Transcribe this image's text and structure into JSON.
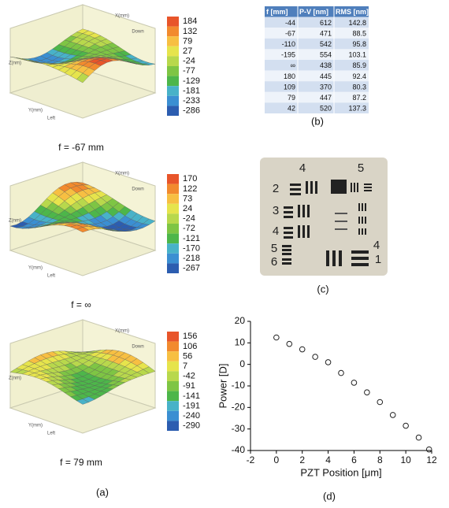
{
  "surface_axis_labels": [
    "X(mm)",
    "Y(mm)",
    "Z(nm)",
    "Left",
    "Down"
  ],
  "colorbar_colors": [
    "#e8552a",
    "#f28a2e",
    "#f7bf42",
    "#e6e44c",
    "#b8d84c",
    "#7ec544",
    "#4db64a",
    "#48b2c8",
    "#3b8fd2",
    "#2c5db0"
  ],
  "surfaces": [
    {
      "caption": "f = -67 mm",
      "colorbar": [
        184,
        132,
        79,
        27,
        -24,
        -77,
        -129,
        -181,
        -233,
        -286
      ]
    },
    {
      "caption": "f = ∞",
      "colorbar": [
        170,
        122,
        73,
        24,
        -24,
        -72,
        -121,
        -170,
        -218,
        -267
      ]
    },
    {
      "caption": "f = 79 mm",
      "colorbar": [
        156,
        106,
        56,
        7,
        -42,
        -91,
        -141,
        -191,
        -240,
        -290
      ]
    }
  ],
  "panel_labels": [
    "(a)",
    "(b)",
    "(c)",
    "(d)"
  ],
  "table": {
    "header": [
      "f [mm]",
      "P-V [nm]",
      "RMS [nm]"
    ],
    "rows": [
      [
        -44,
        612,
        142.8
      ],
      [
        -67,
        471,
        88.5
      ],
      [
        -110,
        542,
        95.8
      ],
      [
        -195,
        554,
        103.1
      ],
      [
        "∞",
        438,
        85.9
      ],
      [
        180,
        445,
        92.4
      ],
      [
        109,
        370,
        80.3
      ],
      [
        79,
        447,
        87.2
      ],
      [
        42,
        520,
        137.3
      ]
    ]
  },
  "target": {
    "labels": [
      "4",
      "5",
      "2",
      "3",
      "4",
      "5",
      "6",
      "4",
      "1"
    ]
  },
  "chart_data": {
    "type": "scatter",
    "xlabel": "PZT Position [μm]",
    "ylabel": "Power [D]",
    "x": [
      0,
      1,
      2,
      3,
      4,
      5,
      6,
      7,
      8,
      9,
      10,
      11,
      11.8
    ],
    "series": [
      {
        "color": "#222222",
        "values": [
          12.5,
          9.5,
          7,
          3.5,
          1,
          -4,
          -8.5,
          -13,
          -17.5,
          -23.5,
          -28.5,
          -34,
          -39.5
        ]
      }
    ],
    "xlim": [
      -2,
      12
    ],
    "xticks": [
      -2,
      0,
      2,
      4,
      6,
      8,
      10,
      12
    ],
    "ylim": [
      -40,
      20
    ],
    "yticks": [
      -40,
      -30,
      -20,
      -10,
      0,
      10,
      20
    ],
    "grid": false
  }
}
